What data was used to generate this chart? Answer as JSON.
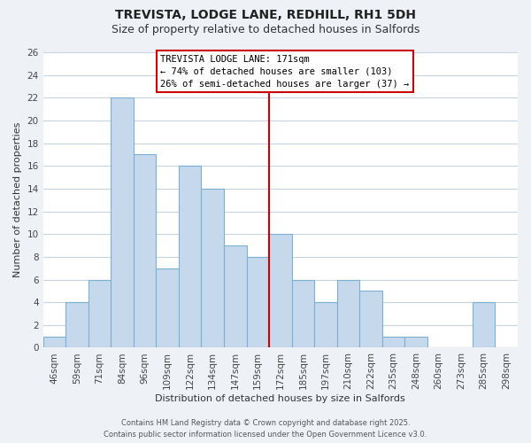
{
  "title": "TREVISTA, LODGE LANE, REDHILL, RH1 5DH",
  "subtitle": "Size of property relative to detached houses in Salfords",
  "xlabel": "Distribution of detached houses by size in Salfords",
  "ylabel": "Number of detached properties",
  "bar_labels": [
    "46sqm",
    "59sqm",
    "71sqm",
    "84sqm",
    "96sqm",
    "109sqm",
    "122sqm",
    "134sqm",
    "147sqm",
    "159sqm",
    "172sqm",
    "185sqm",
    "197sqm",
    "210sqm",
    "222sqm",
    "235sqm",
    "248sqm",
    "260sqm",
    "273sqm",
    "285sqm",
    "298sqm"
  ],
  "bar_values": [
    1,
    4,
    6,
    22,
    17,
    7,
    16,
    14,
    9,
    8,
    10,
    6,
    4,
    6,
    5,
    1,
    1,
    0,
    0,
    4,
    0
  ],
  "bar_color": "#c6d9ec",
  "bar_edgecolor": "#7bafd4",
  "vline_index": 10,
  "vline_color": "#cc0000",
  "annotation_title": "TREVISTA LODGE LANE: 171sqm",
  "annotation_line1": "← 74% of detached houses are smaller (103)",
  "annotation_line2": "26% of semi-detached houses are larger (37) →",
  "annotation_box_edgecolor": "#cc0000",
  "ylim": [
    0,
    26
  ],
  "yticks": [
    0,
    2,
    4,
    6,
    8,
    10,
    12,
    14,
    16,
    18,
    20,
    22,
    24,
    26
  ],
  "footer1": "Contains HM Land Registry data © Crown copyright and database right 2025.",
  "footer2": "Contains public sector information licensed under the Open Government Licence v3.0.",
  "bg_color": "#eef2f7",
  "plot_bg_color": "#ffffff",
  "grid_color": "#c8d4e0",
  "title_fontsize": 10,
  "subtitle_fontsize": 9,
  "xlabel_fontsize": 8,
  "ylabel_fontsize": 8,
  "tick_fontsize": 7.5,
  "footer_fontsize": 6
}
